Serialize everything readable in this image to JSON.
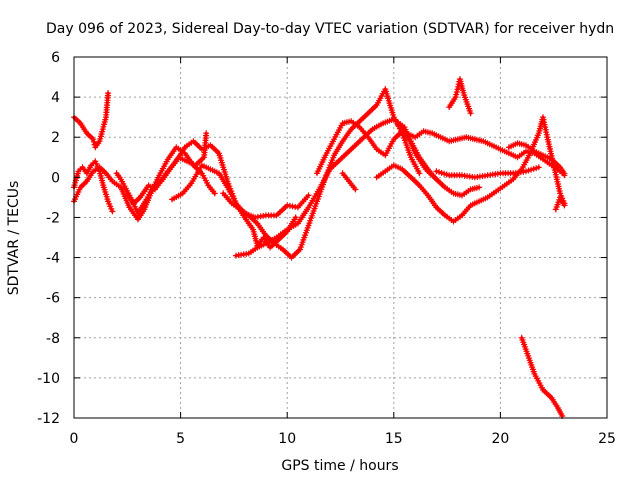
{
  "chart_data": {
    "type": "scatter",
    "title": "Day 096 of 2023, Sidereal Day-to-day VTEC variation (SDTVAR) for receiver hydn",
    "xlabel": "GPS time / hours",
    "ylabel": "SDTVAR / TECUs",
    "xlim": [
      0,
      25
    ],
    "ylim": [
      -12,
      6
    ],
    "xticks": [
      "0",
      "5",
      "10",
      "15",
      "20",
      "25"
    ],
    "yticks": [
      "6",
      "4",
      "2",
      "0",
      "-2",
      "-4",
      "-6",
      "-8",
      "-10",
      "-12"
    ],
    "grid": true,
    "marker": "+",
    "color": "#ff0000",
    "series": [
      {
        "name": "s1",
        "points": [
          [
            0.0,
            3.0
          ],
          [
            0.3,
            2.7
          ],
          [
            0.6,
            2.2
          ],
          [
            0.9,
            1.9
          ],
          [
            1.0,
            1.5
          ],
          [
            1.2,
            1.8
          ],
          [
            1.5,
            3.0
          ],
          [
            1.6,
            4.2
          ]
        ]
      },
      {
        "name": "s2",
        "points": [
          [
            0.0,
            -0.5
          ],
          [
            0.2,
            0.3
          ],
          [
            0.4,
            0.5
          ],
          [
            0.6,
            0.2
          ],
          [
            0.8,
            0.6
          ],
          [
            1.0,
            0.8
          ],
          [
            1.2,
            0.3
          ],
          [
            1.4,
            -0.5
          ],
          [
            1.6,
            -1.2
          ],
          [
            1.8,
            -1.7
          ]
        ]
      },
      {
        "name": "s3",
        "points": [
          [
            0.0,
            -1.2
          ],
          [
            0.3,
            -0.5
          ],
          [
            0.6,
            -0.2
          ],
          [
            0.9,
            0.3
          ],
          [
            1.2,
            0.5
          ],
          [
            1.5,
            0.2
          ],
          [
            1.8,
            -0.2
          ],
          [
            2.2,
            -0.5
          ],
          [
            2.6,
            -1.5
          ],
          [
            3.0,
            -2.1
          ],
          [
            3.3,
            -1.6
          ],
          [
            3.6,
            -0.8
          ],
          [
            4.0,
            0.1
          ],
          [
            4.4,
            0.9
          ],
          [
            4.8,
            1.5
          ],
          [
            5.2,
            1.2
          ],
          [
            5.6,
            0.6
          ],
          [
            6.0,
            0.2
          ],
          [
            6.3,
            -0.4
          ],
          [
            6.6,
            -0.8
          ]
        ]
      },
      {
        "name": "s4",
        "points": [
          [
            2.5,
            -0.8
          ],
          [
            2.8,
            -1.3
          ],
          [
            3.1,
            -1.0
          ],
          [
            3.5,
            -0.4
          ],
          [
            3.8,
            -0.6
          ],
          [
            4.0,
            -0.3
          ],
          [
            4.4,
            0.3
          ],
          [
            4.8,
            0.8
          ],
          [
            5.2,
            1.5
          ],
          [
            5.6,
            1.8
          ],
          [
            6.0,
            1.4
          ],
          [
            6.4,
            1.6
          ],
          [
            6.8,
            1.2
          ],
          [
            7.2,
            -0.2
          ],
          [
            7.6,
            -1.3
          ],
          [
            8.0,
            -2.0
          ],
          [
            8.4,
            -2.6
          ],
          [
            8.6,
            -3.4
          ],
          [
            8.9,
            -3.0
          ],
          [
            9.2,
            -3.5
          ],
          [
            9.6,
            -3.1
          ],
          [
            10.0,
            -2.7
          ],
          [
            10.4,
            -2.0
          ]
        ]
      },
      {
        "name": "s5",
        "points": [
          [
            2.0,
            0.2
          ],
          [
            2.2,
            -0.1
          ],
          [
            2.6,
            -0.9
          ],
          [
            3.0,
            -1.8
          ],
          [
            3.4,
            -1.1
          ],
          [
            3.7,
            -0.5
          ],
          [
            4.1,
            -0.2
          ],
          [
            4.5,
            0.4
          ],
          [
            4.9,
            1.0
          ],
          [
            5.3,
            0.8
          ],
          [
            5.7,
            0.6
          ],
          [
            6.1,
            1.0
          ],
          [
            6.2,
            2.2
          ]
        ]
      },
      {
        "name": "s6",
        "points": [
          [
            4.6,
            -1.1
          ],
          [
            5.1,
            -0.8
          ],
          [
            5.5,
            -0.3
          ],
          [
            6.0,
            0.6
          ],
          [
            6.4,
            0.4
          ],
          [
            6.8,
            0.2
          ],
          [
            7.2,
            -0.5
          ],
          [
            7.6,
            -1.3
          ],
          [
            8.0,
            -1.8
          ],
          [
            8.5,
            -2.0
          ],
          [
            9.0,
            -1.9
          ],
          [
            9.5,
            -1.9
          ],
          [
            10.0,
            -1.4
          ],
          [
            10.5,
            -1.5
          ],
          [
            11.0,
            -0.9
          ]
        ]
      },
      {
        "name": "s7",
        "points": [
          [
            7.6,
            -3.9
          ],
          [
            8.2,
            -3.8
          ],
          [
            8.6,
            -3.5
          ],
          [
            9.0,
            -3.3
          ],
          [
            9.5,
            -3.0
          ],
          [
            10.0,
            -2.6
          ],
          [
            10.5,
            -2.3
          ],
          [
            11.0,
            -1.5
          ],
          [
            11.5,
            -0.6
          ],
          [
            12.0,
            0.4
          ],
          [
            12.5,
            0.9
          ],
          [
            13.0,
            1.4
          ],
          [
            13.5,
            1.9
          ],
          [
            14.0,
            2.4
          ],
          [
            14.5,
            2.7
          ],
          [
            15.0,
            2.9
          ],
          [
            15.5,
            2.5
          ],
          [
            16.0,
            1.2
          ],
          [
            16.5,
            0.4
          ],
          [
            17.0,
            -0.1
          ]
        ]
      },
      {
        "name": "s8",
        "points": [
          [
            7.0,
            -0.8
          ],
          [
            7.4,
            -1.3
          ],
          [
            7.8,
            -1.6
          ],
          [
            8.2,
            -1.9
          ],
          [
            8.6,
            -2.3
          ],
          [
            9.0,
            -2.9
          ],
          [
            9.4,
            -3.3
          ],
          [
            9.8,
            -3.6
          ],
          [
            10.2,
            -4.0
          ],
          [
            10.6,
            -3.6
          ],
          [
            11.0,
            -2.4
          ],
          [
            11.4,
            -1.2
          ],
          [
            11.8,
            0.0
          ],
          [
            12.2,
            1.1
          ],
          [
            12.6,
            1.8
          ],
          [
            13.0,
            2.4
          ],
          [
            13.4,
            2.8
          ],
          [
            13.8,
            3.2
          ],
          [
            14.2,
            3.6
          ],
          [
            14.6,
            4.4
          ],
          [
            15.0,
            3.0
          ],
          [
            15.4,
            2.2
          ],
          [
            15.8,
            1.0
          ],
          [
            16.2,
            0.2
          ]
        ]
      },
      {
        "name": "s9",
        "points": [
          [
            11.4,
            0.2
          ],
          [
            11.8,
            1.1
          ],
          [
            12.2,
            1.9
          ],
          [
            12.6,
            2.7
          ],
          [
            13.0,
            2.8
          ],
          [
            13.4,
            2.5
          ],
          [
            13.8,
            2.0
          ],
          [
            14.2,
            1.4
          ],
          [
            14.6,
            1.1
          ],
          [
            15.0,
            1.9
          ],
          [
            15.4,
            2.3
          ],
          [
            15.8,
            1.8
          ],
          [
            16.2,
            1.0
          ],
          [
            16.6,
            0.4
          ],
          [
            17.0,
            -0.1
          ],
          [
            17.4,
            -0.5
          ],
          [
            17.8,
            -0.8
          ],
          [
            18.2,
            -0.9
          ],
          [
            18.6,
            -0.6
          ],
          [
            19.0,
            -0.5
          ]
        ]
      },
      {
        "name": "s10",
        "points": [
          [
            12.6,
            0.2
          ],
          [
            12.9,
            -0.2
          ],
          [
            13.2,
            -0.6
          ]
        ]
      },
      {
        "name": "s11",
        "points": [
          [
            14.2,
            0.0
          ],
          [
            14.6,
            0.3
          ],
          [
            15.0,
            0.6
          ],
          [
            15.4,
            0.4
          ],
          [
            15.8,
            0.0
          ],
          [
            16.2,
            -0.4
          ],
          [
            16.6,
            -0.9
          ],
          [
            17.0,
            -1.5
          ],
          [
            17.4,
            -1.9
          ],
          [
            17.8,
            -2.2
          ],
          [
            18.2,
            -1.9
          ],
          [
            18.6,
            -1.4
          ],
          [
            19.0,
            -1.2
          ],
          [
            19.4,
            -1.0
          ],
          [
            19.8,
            -0.7
          ],
          [
            20.2,
            -0.4
          ],
          [
            20.6,
            -0.1
          ],
          [
            21.0,
            0.4
          ],
          [
            21.4,
            1.2
          ],
          [
            21.8,
            2.2
          ],
          [
            22.0,
            3.0
          ],
          [
            22.2,
            2.0
          ],
          [
            22.5,
            0.6
          ],
          [
            22.8,
            -0.8
          ],
          [
            23.0,
            -1.3
          ]
        ]
      },
      {
        "name": "s12",
        "points": [
          [
            15.2,
            2.6
          ],
          [
            15.6,
            2.2
          ],
          [
            16.0,
            2.0
          ],
          [
            16.4,
            2.3
          ],
          [
            16.8,
            2.2
          ],
          [
            17.2,
            2.0
          ],
          [
            17.6,
            1.8
          ],
          [
            18.0,
            1.9
          ],
          [
            18.4,
            2.0
          ],
          [
            18.8,
            1.9
          ],
          [
            19.2,
            1.8
          ],
          [
            19.6,
            1.6
          ],
          [
            20.0,
            1.4
          ],
          [
            20.4,
            1.2
          ],
          [
            20.8,
            1.0
          ],
          [
            21.2,
            1.3
          ],
          [
            21.6,
            1.2
          ],
          [
            22.0,
            0.9
          ],
          [
            22.4,
            0.6
          ],
          [
            22.8,
            0.3
          ],
          [
            23.0,
            0.1
          ]
        ]
      },
      {
        "name": "s13",
        "points": [
          [
            17.0,
            0.3
          ],
          [
            17.6,
            0.1
          ],
          [
            18.2,
            0.1
          ],
          [
            18.8,
            0.0
          ],
          [
            19.4,
            0.1
          ],
          [
            20.0,
            0.2
          ],
          [
            20.6,
            0.2
          ],
          [
            21.2,
            0.3
          ],
          [
            21.8,
            0.5
          ]
        ]
      },
      {
        "name": "s14",
        "points": [
          [
            17.6,
            3.5
          ],
          [
            17.9,
            4.0
          ],
          [
            18.1,
            4.9
          ],
          [
            18.3,
            4.1
          ],
          [
            18.6,
            3.2
          ]
        ]
      },
      {
        "name": "s15",
        "points": [
          [
            20.4,
            1.5
          ],
          [
            20.8,
            1.7
          ],
          [
            21.2,
            1.6
          ],
          [
            21.6,
            1.3
          ],
          [
            22.0,
            1.1
          ],
          [
            22.4,
            0.9
          ],
          [
            22.8,
            0.5
          ],
          [
            23.0,
            0.2
          ]
        ]
      },
      {
        "name": "s16",
        "points": [
          [
            22.6,
            -1.6
          ],
          [
            22.8,
            -1.0
          ],
          [
            23.0,
            -1.4
          ]
        ]
      },
      {
        "name": "s17",
        "points": [
          [
            21.0,
            -8.0
          ],
          [
            21.3,
            -8.9
          ],
          [
            21.6,
            -9.8
          ],
          [
            22.0,
            -10.6
          ],
          [
            22.4,
            -11.0
          ],
          [
            22.7,
            -11.5
          ],
          [
            22.9,
            -11.9
          ]
        ]
      }
    ]
  }
}
